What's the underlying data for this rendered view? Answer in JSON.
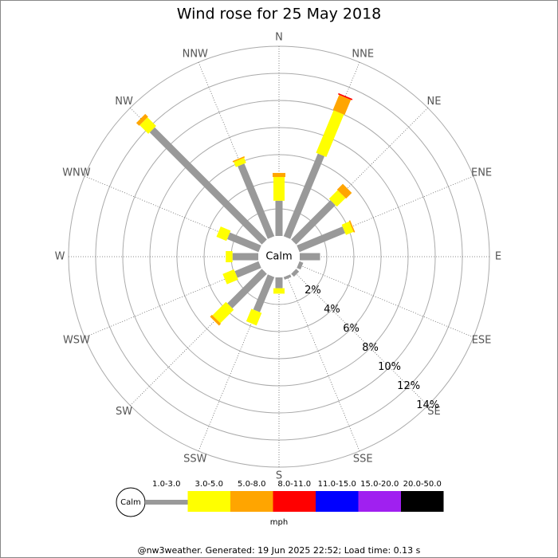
{
  "chart_data": {
    "type": "wind_rose",
    "title": "Wind rose for 25 May 2018",
    "directions": [
      "N",
      "NNE",
      "NE",
      "ENE",
      "E",
      "ESE",
      "SE",
      "SSE",
      "S",
      "SSW",
      "SW",
      "WSW",
      "W",
      "WNW",
      "NW",
      "NNW"
    ],
    "series": [
      {
        "name": "1.0-3.0",
        "color": "#999999",
        "values": [
          2.6,
          6.6,
          4.1,
          3.65,
          1.5,
          0.3,
          0.3,
          0.2,
          0.8,
          2.8,
          3.6,
          1.9,
          1.9,
          2.5,
          11.7,
          5.8
        ]
      },
      {
        "name": "3.0-5.0",
        "color": "#ffff00",
        "values": [
          1.75,
          3.4,
          0.9,
          0.6,
          0,
          0,
          0,
          0,
          0.4,
          1.0,
          1.4,
          0.9,
          0.5,
          0.8,
          0.9,
          0.4
        ]
      },
      {
        "name": "5.0-8.0",
        "color": "#ffa500",
        "values": [
          0.3,
          1.2,
          0.6,
          0.1,
          0,
          0,
          0,
          0,
          0,
          0,
          0.2,
          0,
          0,
          0,
          0.3,
          0.1
        ]
      },
      {
        "name": "8.0-11.0",
        "color": "#ff0000",
        "values": [
          0,
          0.1,
          0,
          0,
          0,
          0,
          0,
          0,
          0,
          0,
          0,
          0,
          0,
          0,
          0,
          0
        ]
      },
      {
        "name": "11.0-15.0",
        "color": "#0000ff",
        "values": [
          0,
          0,
          0,
          0,
          0,
          0,
          0,
          0,
          0,
          0,
          0,
          0,
          0,
          0,
          0,
          0
        ]
      },
      {
        "name": "15.0-20.0",
        "color": "#a020f0",
        "values": [
          0,
          0,
          0,
          0,
          0,
          0,
          0,
          0,
          0,
          0,
          0,
          0,
          0,
          0,
          0,
          0
        ]
      },
      {
        "name": "20.0-50.0",
        "color": "#000000",
        "values": [
          0,
          0,
          0,
          0,
          0,
          0,
          0,
          0,
          0,
          0,
          0,
          0,
          0,
          0,
          0,
          0
        ]
      }
    ],
    "rlim": [
      0,
      14
    ],
    "rticks": [
      {
        "value": 2,
        "label": "2%"
      },
      {
        "value": 4,
        "label": "4%"
      },
      {
        "value": 6,
        "label": "6%"
      },
      {
        "value": 8,
        "label": "8%"
      },
      {
        "value": 10,
        "label": "10%"
      },
      {
        "value": 12,
        "label": "12%"
      },
      {
        "value": 14,
        "label": "14%"
      }
    ],
    "calm_label": "Calm",
    "unit": "mph",
    "footer": "@nw3weather. Generated: 19 Jun 2025 22:52; Load time: 0.13 s"
  }
}
